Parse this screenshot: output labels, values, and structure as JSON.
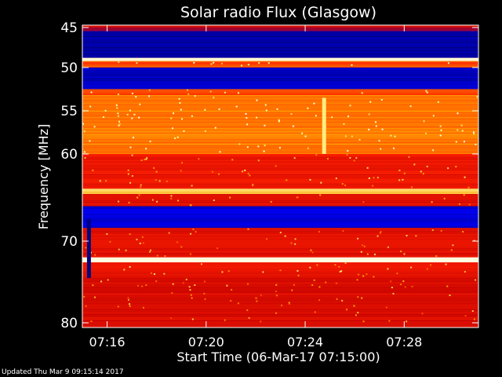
{
  "chart_data": {
    "type": "heatmap",
    "title": "Solar radio Flux (Glasgow)",
    "xlabel": "Start Time (06-Mar-17 07:15:00)",
    "ylabel": "Frequency [MHz]",
    "ylim": [
      45,
      80
    ],
    "xlim": [
      "07:15:00",
      "07:31:00"
    ],
    "y_ticks": [
      "45",
      "50",
      "55",
      "60",
      "70",
      "80"
    ],
    "y_tick_values": [
      45,
      50,
      55,
      60,
      70,
      80
    ],
    "x_ticks": [
      "07:16",
      "07:20",
      "07:24",
      "07:28"
    ],
    "x_tick_minutes": [
      16,
      20,
      24,
      28
    ],
    "colormap": [
      "#000080",
      "#0000ff",
      "#c00000",
      "#ff2000",
      "#ffa000",
      "#ffffa0",
      "#ffffff"
    ],
    "frequency_bands": [
      {
        "from": 45.0,
        "to": 45.5,
        "level": 0.3
      },
      {
        "from": 45.5,
        "to": 48.8,
        "level": 0.05
      },
      {
        "from": 48.8,
        "to": 49.2,
        "level": 0.95
      },
      {
        "from": 49.2,
        "to": 50.0,
        "level": 0.55
      },
      {
        "from": 50.0,
        "to": 52.5,
        "level": 0.08
      },
      {
        "from": 52.5,
        "to": 53.2,
        "level": 0.55
      },
      {
        "from": 53.2,
        "to": 60.0,
        "level": 0.62
      },
      {
        "from": 60.0,
        "to": 64.0,
        "level": 0.45
      },
      {
        "from": 64.0,
        "to": 64.6,
        "level": 0.75
      },
      {
        "from": 64.6,
        "to": 66.0,
        "level": 0.42
      },
      {
        "from": 66.0,
        "to": 68.5,
        "level": 0.12
      },
      {
        "from": 68.5,
        "to": 72.0,
        "level": 0.42
      },
      {
        "from": 72.0,
        "to": 72.6,
        "level": 0.93
      },
      {
        "from": 72.6,
        "to": 74.5,
        "level": 0.45
      },
      {
        "from": 74.5,
        "to": 80.0,
        "level": 0.4
      }
    ],
    "events": [
      {
        "time": "07:24:45",
        "freq_from": 53.5,
        "freq_to": 60.0,
        "level": 0.8
      },
      {
        "time": "07:15:15",
        "freq_from": 67.5,
        "freq_to": 74.5,
        "level": 0.0
      }
    ]
  },
  "footer": {
    "updated": "Updated Thu Mar  9 09:15:14 2017"
  }
}
